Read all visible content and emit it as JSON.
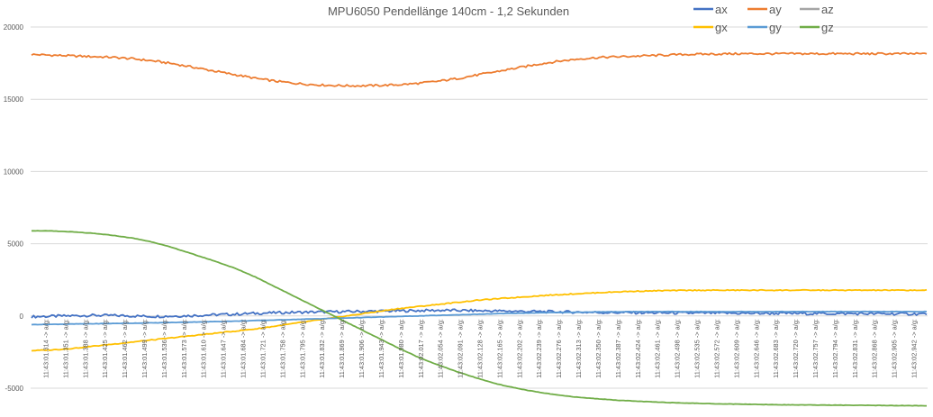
{
  "chart_data": {
    "type": "line",
    "title": "MPU6050 Pendellänge 140cm - 1,2 Sekunden",
    "ylim": [
      -5000,
      20000
    ],
    "y_ticks": [
      -5000,
      0,
      5000,
      10000,
      15000,
      20000
    ],
    "y_tick_labels": [
      "-5000",
      "0",
      "5000",
      "10000",
      "15000",
      "20000"
    ],
    "grid": true,
    "legend_position": "top-right",
    "x_tick_labels": [
      "11:43:01.314 -> a/g:",
      "11:43:01.351 -> a/g:",
      "11:43:01.388 -> a/g:",
      "11:43:01.425 -> a/g:",
      "11:43:01.462 -> a/g:",
      "11:43:01.499 -> a/g:",
      "11:43:01.536 -> a/g:",
      "11:43:01.573 -> a/g:",
      "11:43:01.610 -> a/g:",
      "11:43:01.647 -> a/g:",
      "11:43:01.684 -> a/g:",
      "11:43:01.721 -> a/g:",
      "11:43:01.758 -> a/g:",
      "11:43:01.795 -> a/g:",
      "11:43:01.832 -> a/g:",
      "11:43:01.869 -> a/g:",
      "11:43:01.906 -> a/g:",
      "11:43:01.943 -> a/g:",
      "11:43:01.980 -> a/g:",
      "11:43:02.017 -> a/g:",
      "11:43:02.054 -> a/g:",
      "11:43:02.091 -> a/g:",
      "11:43:02.128 -> a/g:",
      "11:43:02.165 -> a/g:",
      "11:43:02.202 -> a/g:",
      "11:43:02.239 -> a/g:",
      "11:43:02.276 -> a/g:",
      "11:43:02.313 -> a/g:",
      "11:43:02.350 -> a/g:",
      "11:43:02.387 -> a/g:",
      "11:43:02.424 -> a/g:",
      "11:43:02.461 -> a/g:",
      "11:43:02.498 -> a/g:",
      "11:43:02.535 -> a/g:",
      "11:43:02.572 -> a/g:",
      "11:43:02.609 -> a/g:",
      "11:43:02.646 -> a/g:",
      "11:43:02.683 -> a/g:",
      "11:43:02.720 -> a/g:",
      "11:43:02.757 -> a/g:",
      "11:43:02.794 -> a/g:",
      "11:43:02.831 -> a/g:",
      "11:43:02.868 -> a/g:",
      "11:43:02.905 -> a/g:",
      "11:43:02.942 -> a/g:"
    ],
    "series": [
      {
        "name": "ax",
        "color": "#4472C4",
        "values": [
          -50,
          -20,
          10,
          40,
          30,
          0,
          -30,
          -10,
          30,
          80,
          120,
          180,
          220,
          250,
          270,
          290,
          310,
          330,
          350,
          370,
          390,
          380,
          360,
          340,
          320,
          300,
          280,
          260,
          240,
          230,
          220,
          210,
          200,
          195,
          190,
          185,
          180,
          175,
          170,
          165,
          160,
          155,
          150,
          145,
          140
        ]
      },
      {
        "name": "ay",
        "color": "#ED7D31",
        "values": [
          18100,
          18050,
          18000,
          17950,
          17900,
          17800,
          17650,
          17450,
          17200,
          16950,
          16700,
          16450,
          16250,
          16100,
          16000,
          15950,
          15930,
          15950,
          16000,
          16100,
          16250,
          16450,
          16700,
          16950,
          17200,
          17450,
          17650,
          17800,
          17900,
          17950,
          18000,
          18050,
          18100,
          18120,
          18140,
          18150,
          18150,
          18150,
          18150,
          18150,
          18150,
          18150,
          18150,
          18150,
          18150
        ]
      },
      {
        "name": "az",
        "color": "#A5A5A5",
        "values": []
      },
      {
        "name": "gx",
        "color": "#FFC000",
        "values": [
          -2400,
          -2350,
          -2250,
          -2100,
          -1950,
          -1800,
          -1650,
          -1500,
          -1350,
          -1200,
          -1050,
          -900,
          -700,
          -500,
          -300,
          -100,
          100,
          300,
          500,
          650,
          800,
          950,
          1100,
          1200,
          1300,
          1400,
          1480,
          1550,
          1620,
          1680,
          1720,
          1750,
          1770,
          1780,
          1780,
          1780,
          1780,
          1780,
          1780,
          1780,
          1780,
          1780,
          1780,
          1780,
          1780
        ]
      },
      {
        "name": "gy",
        "color": "#5B9BD5",
        "values": [
          -600,
          -580,
          -560,
          -540,
          -520,
          -500,
          -480,
          -450,
          -420,
          -390,
          -360,
          -320,
          -280,
          -240,
          -200,
          -160,
          -120,
          -80,
          -40,
          0,
          40,
          80,
          120,
          160,
          190,
          220,
          240,
          260,
          280,
          290,
          300,
          300,
          300,
          300,
          300,
          300,
          300,
          300,
          300,
          300,
          300,
          300,
          300,
          300,
          300
        ]
      },
      {
        "name": "gz",
        "color": "#70AD47",
        "values": [
          5900,
          5880,
          5820,
          5720,
          5580,
          5380,
          5100,
          4700,
          4250,
          3800,
          3300,
          2700,
          2000,
          1300,
          600,
          -100,
          -800,
          -1500,
          -2200,
          -2850,
          -3400,
          -3900,
          -4350,
          -4750,
          -5050,
          -5300,
          -5500,
          -5650,
          -5750,
          -5850,
          -5920,
          -5980,
          -6020,
          -6060,
          -6090,
          -6110,
          -6130,
          -6150,
          -6160,
          -6170,
          -6180,
          -6190,
          -6200,
          -6210,
          -6220
        ]
      }
    ]
  }
}
